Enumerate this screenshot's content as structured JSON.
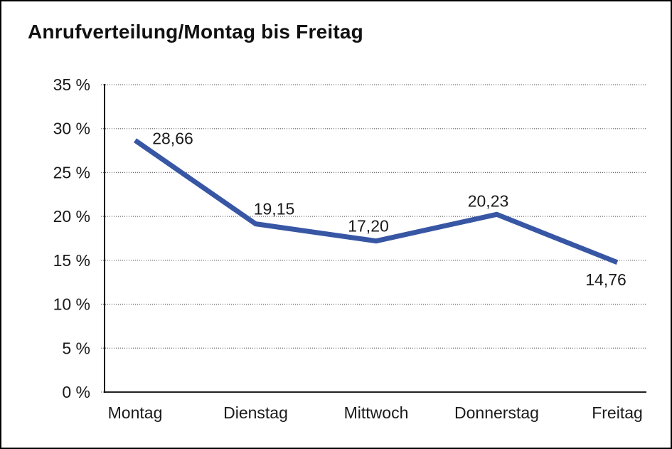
{
  "chart_data": {
    "type": "line",
    "title": "Anrufverteilung/Montag bis Freitag",
    "categories": [
      "Montag",
      "Dienstag",
      "Mittwoch",
      "Donnerstag",
      "Freitag"
    ],
    "values": [
      28.66,
      19.15,
      17.2,
      20.23,
      14.76
    ],
    "data_labels": [
      "28,66",
      "19,15",
      "17,20",
      "20,23",
      "14,76"
    ],
    "y_tick_labels": [
      "0 %",
      "5 %",
      "10 %",
      "15 %",
      "20 %",
      "25 %",
      "30 %",
      "35 %"
    ],
    "ylim": [
      0,
      35
    ],
    "y_step": 5,
    "xlabel": "",
    "ylabel": "",
    "grid": "horizontal-dotted",
    "legend": "none",
    "colors": {
      "line": "#3756A4",
      "grid": "#6e6e6e",
      "axis": "#000000",
      "text": "#1a1a1a",
      "title": "#111111",
      "background": "#ffffff",
      "border": "#000000"
    }
  }
}
